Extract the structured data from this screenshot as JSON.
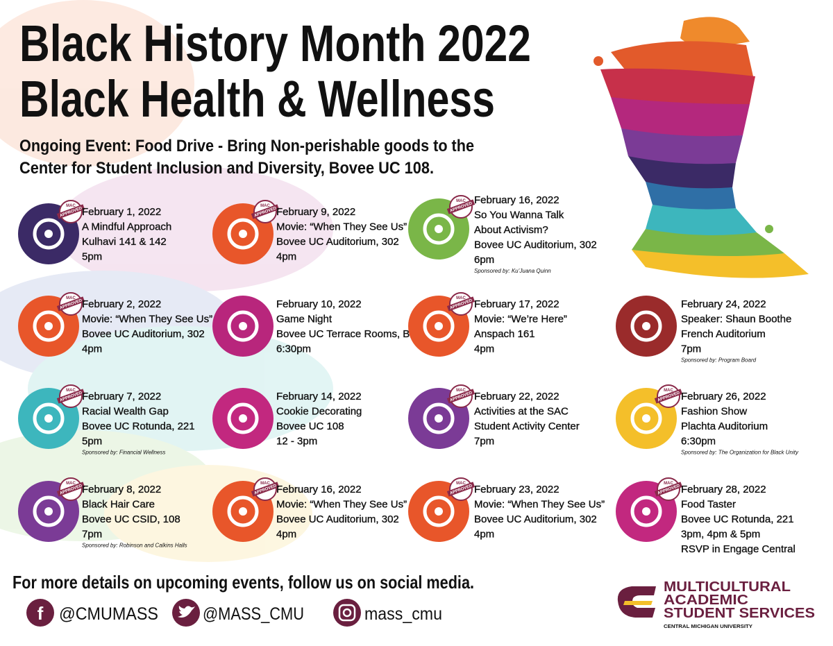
{
  "header": {
    "title": [
      "Black History Month 2022",
      "Black Health & Wellness"
    ],
    "ongoing": [
      "Ongoing Event: Food Drive - Bring Non-perishable goods to the",
      "Center for Student Inclusion and Diversity, Bovee UC 108."
    ]
  },
  "badge": [
    "MAC",
    "APPROVED"
  ],
  "columns": [
    [
      {
        "date": "February 1, 2022",
        "lines": [
          "A Mindful Approach",
          "Kulhavi 141 & 142",
          "5pm"
        ],
        "color": "#3b2a66",
        "approved": true
      },
      {
        "date": "February 2, 2022",
        "lines": [
          "Movie: “When They See Us”",
          "Bovee UC Auditorium, 302",
          "4pm"
        ],
        "color": "#e8562a",
        "approved": true
      },
      {
        "date": "February 7, 2022",
        "lines": [
          "Racial Wealth Gap",
          "Bovee UC Rotunda, 221",
          "5pm"
        ],
        "sponsor": "Sponsored by: Financial Wellness",
        "color": "#3db6bd",
        "approved": true
      },
      {
        "date": "February 8, 2022",
        "lines": [
          "Black Hair Care",
          "Bovee UC CSID, 108",
          "7pm"
        ],
        "sponsor": "Sponsored by: Robinson and Calkins Halls",
        "color": "#7b3b96",
        "approved": true
      }
    ],
    [
      {
        "date": "February 9, 2022",
        "lines": [
          "Movie: “When They See Us”",
          "Bovee UC Auditorium, 302",
          "4pm"
        ],
        "color": "#e8562a",
        "approved": true
      },
      {
        "date": "February 10, 2022",
        "lines": [
          "Game Night",
          "Bovee UC Terrace Rooms, B-D",
          "6:30pm"
        ],
        "color": "#b8267c",
        "approved": false
      },
      {
        "date": "February 14, 2022",
        "lines": [
          "Cookie Decorating",
          "Bovee UC 108",
          "12 - 3pm"
        ],
        "color": "#c2287f",
        "approved": false
      },
      {
        "date": "February 16, 2022",
        "lines": [
          "Movie: “When They See Us”",
          "Bovee UC Auditorium, 302",
          "4pm"
        ],
        "color": "#e8562a",
        "approved": true
      }
    ],
    [
      {
        "date": "February 16, 2022",
        "lines": [
          "So You Wanna Talk",
          "About Activism?",
          "Bovee UC Auditorium, 302",
          "6pm"
        ],
        "sponsor": "Sponsored by: Ku’Juana Quinn",
        "color": "#7ab648",
        "approved": true
      },
      {
        "date": "February 17, 2022",
        "lines": [
          "Movie: “We’re Here”",
          "Anspach 161",
          "4pm"
        ],
        "color": "#e8562a",
        "approved": true
      },
      {
        "date": "February 22, 2022",
        "lines": [
          "Activities at the SAC",
          "Student Activity Center",
          "7pm"
        ],
        "color": "#7b3b96",
        "approved": true
      },
      {
        "date": "February 23, 2022",
        "lines": [
          "Movie: “When They See Us”",
          "Bovee UC Auditorium, 302",
          "4pm"
        ],
        "color": "#e8562a",
        "approved": true
      }
    ],
    [
      {
        "date": "February 24, 2022",
        "lines": [
          "Speaker: Shaun Boothe",
          "French Auditorium",
          "7pm"
        ],
        "sponsor": "Sponsored by: Program Board",
        "color": "#9a2b2b",
        "approved": false
      },
      {
        "date": "February 26, 2022",
        "lines": [
          "Fashion Show",
          "Plachta Auditorium",
          "6:30pm"
        ],
        "sponsor": "Sponsored by: The Organization for Black Unity",
        "color": "#f4bf2a",
        "approved": true
      },
      {
        "date": "February 28, 2022",
        "lines": [
          "Food Taster",
          "Bovee UC Rotunda, 221",
          "3pm, 4pm & 5pm",
          "RSVP in Engage Central"
        ],
        "color": "#c2287f",
        "approved": true
      }
    ]
  ],
  "footer": {
    "text": "For more details on upcoming events, follow us on social media.",
    "social": [
      "@CMUMASS",
      "@MASS_CMU",
      "mass_cmu"
    ],
    "logo": {
      "lines": [
        "MULTICULTURAL",
        "ACADEMIC",
        "STUDENT SERVICES"
      ],
      "university": "CENTRAL MICHIGAN UNIVERSITY"
    }
  }
}
